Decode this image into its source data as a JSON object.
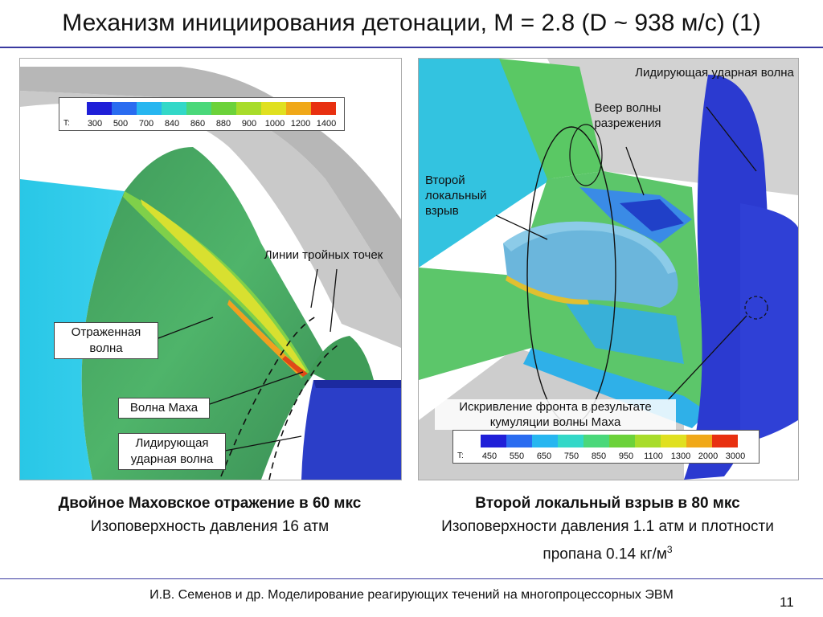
{
  "title": "Механизм инициирования детонации, M = 2.8 (D ~ 938 м/с) (1)",
  "left_panel": {
    "legend_prefix": "T:",
    "legend_values": [
      "300",
      "500",
      "700",
      "840",
      "860",
      "880",
      "900",
      "1000",
      "1200",
      "1400"
    ],
    "legend_colors": [
      "#1f1fd8",
      "#2a6cf0",
      "#27b6f0",
      "#33d8c8",
      "#4ad87a",
      "#6cd23a",
      "#a8dc2a",
      "#e0e020",
      "#f0a818",
      "#e83010"
    ],
    "labels": {
      "triple_lines": "Линии тройных точек",
      "reflected_wave": "Отраженная волна",
      "mach_wave": "Волна Маха",
      "leading_shock": "Лидирующая ударная волна"
    }
  },
  "right_panel": {
    "legend_prefix": "T:",
    "legend_values": [
      "450",
      "550",
      "650",
      "750",
      "850",
      "950",
      "1100",
      "1300",
      "2000",
      "3000"
    ],
    "legend_colors": [
      "#1f1fd8",
      "#2a6cf0",
      "#27b6f0",
      "#33d8c8",
      "#4ad87a",
      "#6cd23a",
      "#a8dc2a",
      "#e0e020",
      "#f0a818",
      "#e83010"
    ],
    "labels": {
      "leading_shock": "Лидирующая ударная волна",
      "rarefaction_fan": "Веер волны разрежения",
      "second_explosion": "Второй локальный взрыв",
      "front_curvature": "Искривление фронта в результате кумуляции волны Маха"
    }
  },
  "caption_left": {
    "bold": "Двойное Маховское отражение в 60 мкс",
    "normal": "Изоповерхность давления 16 атм"
  },
  "caption_right": {
    "bold": "Второй локальный взрыв в 80 мкс",
    "normal": "Изоповерхности давления 1.1 атм и плотности пропана 0.14 кг/м",
    "superscript": "3"
  },
  "footer": "И.В. Семенов и др. Моделирование реагирующих течений на многопроцессорных ЭВМ",
  "page_number": "11"
}
